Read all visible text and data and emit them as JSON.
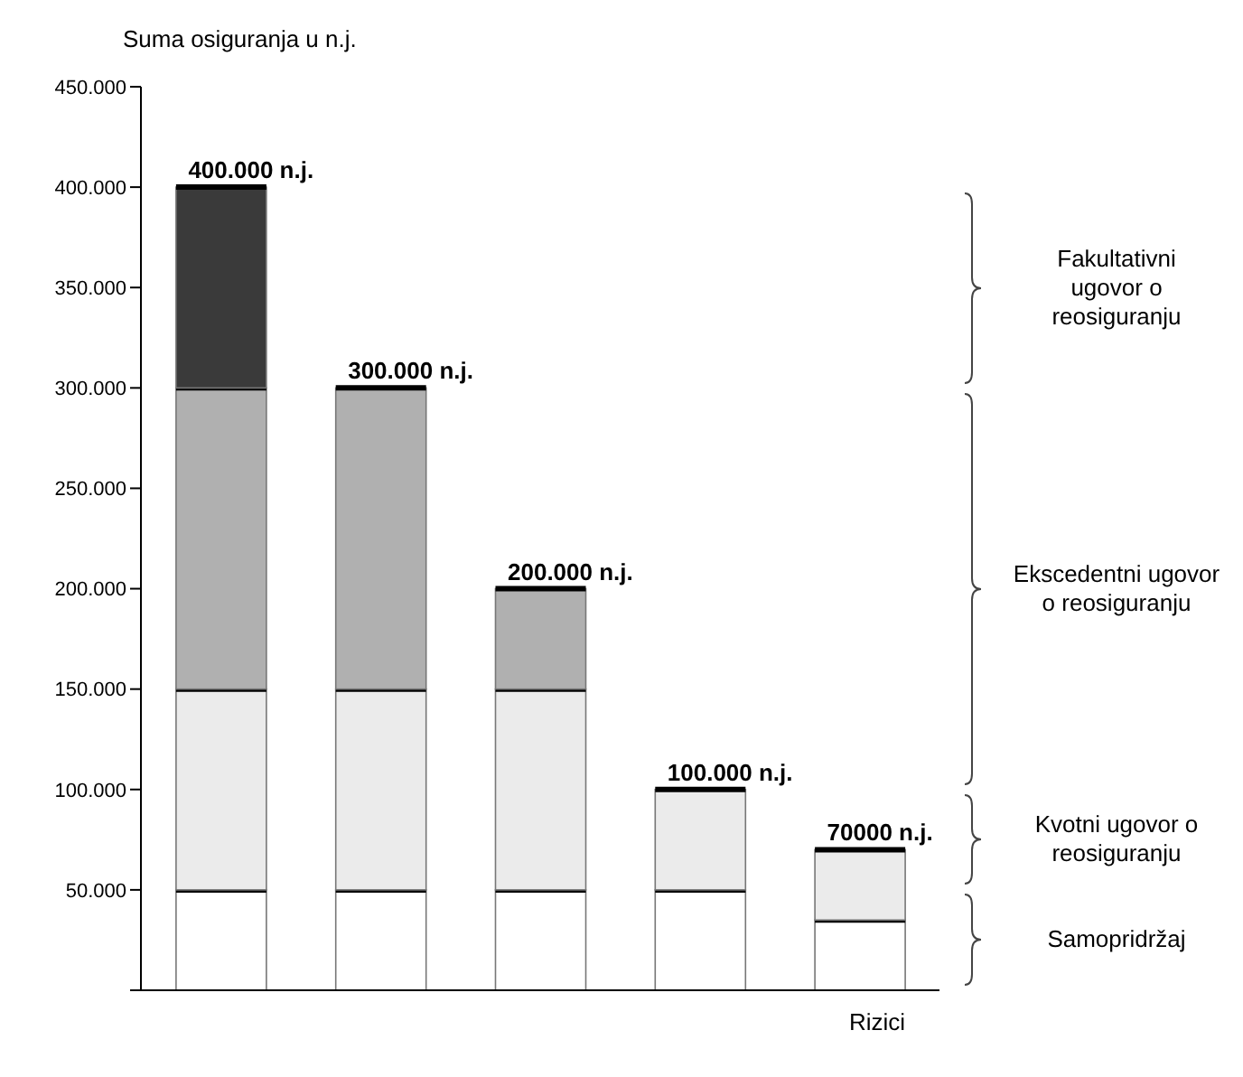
{
  "chart_data": {
    "type": "bar",
    "stacked": true,
    "ylabel": "Suma osiguranja u n.j.",
    "xlabel": "Rizici",
    "categories": [
      null,
      null,
      null,
      null,
      null
    ],
    "series": [
      {
        "color": "#ffffff",
        "values": [
          50000,
          50000,
          50000,
          50000,
          35000
        ]
      },
      {
        "color": "#ebebeb",
        "values": [
          100000,
          100000,
          100000,
          50000,
          35000
        ]
      },
      {
        "color": "#b0b0b0",
        "values": [
          150000,
          150000,
          50000,
          null,
          null
        ]
      },
      {
        "color": "#3a3a3a",
        "values": [
          100000,
          null,
          null,
          null,
          null
        ]
      }
    ],
    "ylim": [
      0,
      450000
    ],
    "yticks": [
      {
        "value": 0,
        "label": null
      },
      {
        "value": 50000,
        "label": "50.000"
      },
      {
        "value": 100000,
        "label": "100.000"
      },
      {
        "value": 150000,
        "label": "150.000"
      },
      {
        "value": 200000,
        "label": "200.000"
      },
      {
        "value": 250000,
        "label": "250.000"
      },
      {
        "value": 300000,
        "label": "300.000"
      },
      {
        "value": 350000,
        "label": "350.000"
      },
      {
        "value": 400000,
        "label": "400.000"
      },
      {
        "value": 450000,
        "label": "450.000"
      }
    ],
    "totals": [
      "400.000 n.j.",
      "300.000 n.j.",
      "200.000 n.j.",
      "100.000 n.j.",
      "70000 n.j."
    ],
    "annotations": [
      "Samopridržaj",
      "Kvotni ugovor o reosiguranju",
      "Ekscedentni ugovor o reosiguranju",
      "Fakultativni ugovor o reosiguranju"
    ],
    "tick_labels": "y",
    "grid": false,
    "legend": false
  }
}
